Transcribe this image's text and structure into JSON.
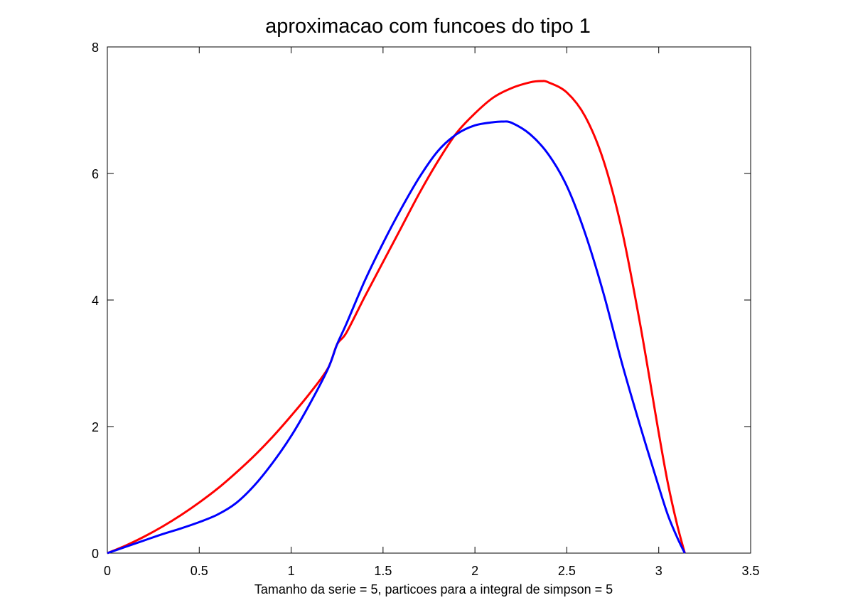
{
  "chart_data": {
    "type": "line",
    "title": "aproximacao com funcoes do tipo 1",
    "xlabel": "Tamanho da serie = 5, particoes para a integral de simpson = 5",
    "ylabel": "",
    "xlim": [
      0,
      3.5
    ],
    "ylim": [
      0,
      8
    ],
    "xticks": [
      0,
      0.5,
      1,
      1.5,
      2,
      2.5,
      3,
      3.5
    ],
    "xtick_labels": [
      "0",
      "0.5",
      "1",
      "1.5",
      "2",
      "2.5",
      "3",
      "3.5"
    ],
    "yticks": [
      0,
      2,
      4,
      6,
      8
    ],
    "ytick_labels": [
      "0",
      "2",
      "4",
      "6",
      "8"
    ],
    "grid": false,
    "legend": "none",
    "series": [
      {
        "color": "#ff0000",
        "x": [
          0,
          0.1,
          0.2,
          0.3,
          0.4,
          0.5,
          0.6,
          0.7,
          0.8,
          0.9,
          1.0,
          1.1,
          1.2,
          1.25,
          1.3,
          1.4,
          1.5,
          1.6,
          1.7,
          1.8,
          1.9,
          2.0,
          2.1,
          2.2,
          2.3,
          2.36,
          2.4,
          2.5,
          2.6,
          2.7,
          2.8,
          2.9,
          3.0,
          3.05,
          3.1,
          3.1416
        ],
        "y": [
          0,
          0.12,
          0.26,
          0.42,
          0.6,
          0.8,
          1.02,
          1.27,
          1.54,
          1.84,
          2.17,
          2.52,
          2.92,
          3.3,
          3.48,
          4.05,
          4.6,
          5.15,
          5.7,
          6.2,
          6.64,
          6.95,
          7.2,
          7.35,
          7.44,
          7.46,
          7.44,
          7.28,
          6.9,
          6.2,
          5.1,
          3.6,
          1.9,
          1.1,
          0.45,
          0
        ]
      },
      {
        "color": "#0000ff",
        "x": [
          0,
          0.1,
          0.2,
          0.3,
          0.4,
          0.5,
          0.6,
          0.7,
          0.8,
          0.9,
          1.0,
          1.1,
          1.2,
          1.25,
          1.3,
          1.4,
          1.5,
          1.6,
          1.7,
          1.8,
          1.9,
          2.0,
          2.1,
          2.15,
          2.2,
          2.3,
          2.4,
          2.5,
          2.6,
          2.7,
          2.8,
          2.9,
          3.0,
          3.05,
          3.1,
          3.1416
        ],
        "y": [
          0,
          0.1,
          0.2,
          0.3,
          0.39,
          0.49,
          0.61,
          0.79,
          1.07,
          1.43,
          1.85,
          2.35,
          2.91,
          3.3,
          3.62,
          4.3,
          4.9,
          5.45,
          5.95,
          6.36,
          6.62,
          6.76,
          6.81,
          6.82,
          6.8,
          6.62,
          6.3,
          5.8,
          5.05,
          4.1,
          3.0,
          2.0,
          1.05,
          0.6,
          0.25,
          0
        ]
      }
    ]
  }
}
